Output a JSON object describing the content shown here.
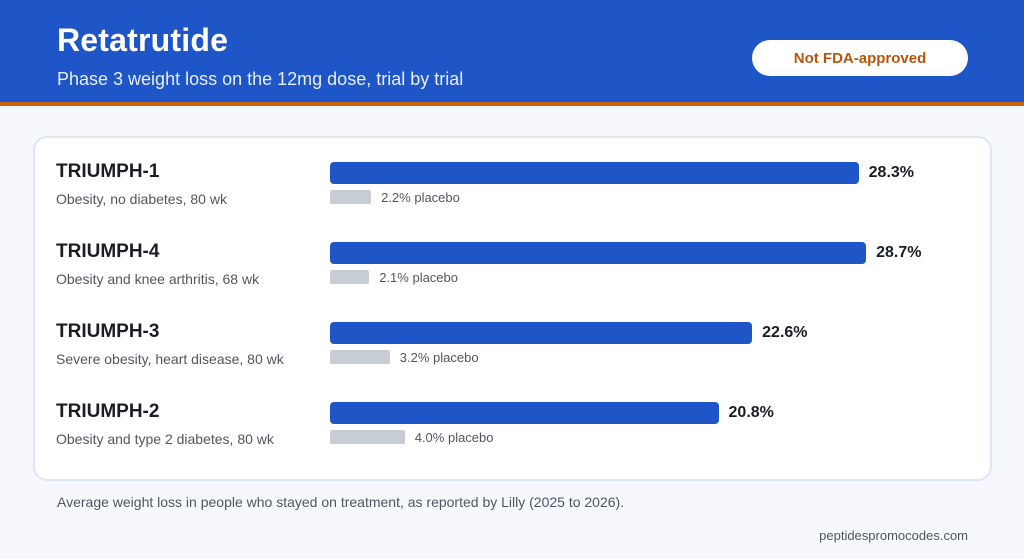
{
  "header": {
    "title": "Retatrutide",
    "subtitle": "Phase 3 weight loss on the 12mg dose, trial by trial",
    "badge": "Not FDA-approved"
  },
  "footer": {
    "note": "Average weight loss in people who stayed on treatment, as reported by Lilly (2025 to 2026).",
    "site": "peptidespromocodes.com"
  },
  "colors": {
    "accent": "#1e55c7",
    "placebo": "#c8ccd4",
    "badge_text": "#b5560a",
    "header_rule": "#c7660e"
  },
  "chart_data": {
    "type": "bar",
    "orientation": "horizontal",
    "title": "Retatrutide",
    "subtitle": "Phase 3 weight loss on the 12mg dose, trial by trial",
    "categories": [
      "TRIUMPH-1",
      "TRIUMPH-4",
      "TRIUMPH-3",
      "TRIUMPH-2"
    ],
    "descriptions": [
      "Obesity, no diabetes, 80 wk",
      "Obesity and knee arthritis, 68 wk",
      "Severe obesity, heart disease, 80 wk",
      "Obesity and type 2 diabetes, 80 wk"
    ],
    "series": [
      {
        "values": [
          28.3,
          28.7,
          22.6,
          20.8
        ],
        "labels": [
          "28.3%",
          "28.7%",
          "22.6%",
          "20.8%"
        ]
      },
      {
        "name": "placebo",
        "values": [
          2.2,
          2.1,
          3.2,
          4.0
        ],
        "labels": [
          "2.2% placebo",
          "2.1% placebo",
          "3.2% placebo",
          "4.0% placebo"
        ]
      }
    ],
    "xlim": [
      0,
      29
    ],
    "grid": false,
    "legend": "none"
  }
}
